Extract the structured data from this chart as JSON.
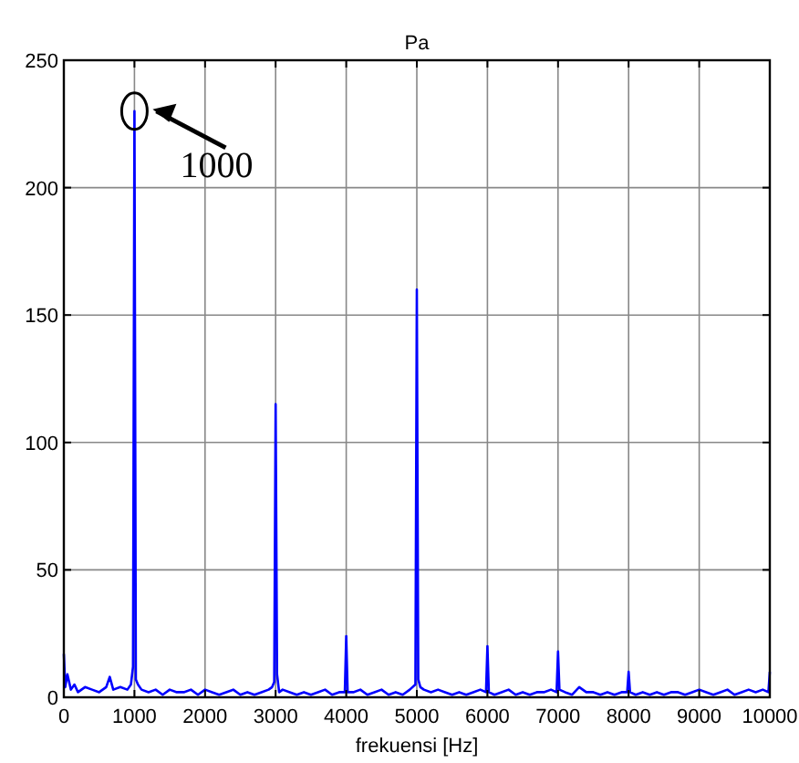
{
  "chart_data": {
    "type": "line",
    "title": "Pa",
    "xlabel": "frekuensi [Hz]",
    "x": [
      0,
      20,
      50,
      100,
      150,
      200,
      300,
      400,
      500,
      600,
      650,
      700,
      800,
      900,
      950,
      980,
      1000,
      1020,
      1050,
      1100,
      1200,
      1300,
      1400,
      1500,
      1600,
      1700,
      1800,
      1900,
      2000,
      2100,
      2200,
      2300,
      2400,
      2500,
      2600,
      2700,
      2800,
      2900,
      2950,
      2980,
      3000,
      3020,
      3050,
      3100,
      3200,
      3300,
      3400,
      3500,
      3600,
      3700,
      3800,
      3900,
      3980,
      4000,
      4020,
      4100,
      4200,
      4300,
      4400,
      4500,
      4600,
      4700,
      4800,
      4900,
      4980,
      5000,
      5020,
      5050,
      5100,
      5200,
      5300,
      5400,
      5500,
      5600,
      5700,
      5800,
      5900,
      5980,
      6000,
      6020,
      6100,
      6200,
      6300,
      6400,
      6500,
      6600,
      6700,
      6800,
      6900,
      6980,
      7000,
      7020,
      7100,
      7200,
      7300,
      7400,
      7500,
      7600,
      7700,
      7800,
      7900,
      7980,
      8000,
      8020,
      8100,
      8200,
      8300,
      8400,
      8500,
      8600,
      8700,
      8800,
      8900,
      9000,
      9100,
      9200,
      9300,
      9400,
      9500,
      9600,
      9700,
      9800,
      9900,
      9980,
      10000
    ],
    "series": [
      {
        "color": "#0000ff",
        "values": [
          17,
          4,
          9,
          3,
          5,
          2,
          4,
          3,
          2,
          4,
          8,
          3,
          4,
          3,
          5,
          12,
          230,
          7,
          5,
          3,
          2,
          3,
          1,
          3,
          2,
          2,
          3,
          1,
          3,
          2,
          1,
          2,
          3,
          1,
          2,
          1,
          2,
          3,
          4,
          6,
          115,
          9,
          2,
          3,
          2,
          1,
          2,
          1,
          2,
          3,
          1,
          2,
          2,
          24,
          2,
          2,
          3,
          1,
          2,
          3,
          1,
          2,
          1,
          3,
          5,
          160,
          7,
          4,
          3,
          2,
          3,
          2,
          1,
          2,
          1,
          2,
          3,
          2,
          20,
          2,
          1,
          2,
          3,
          1,
          2,
          1,
          2,
          2,
          3,
          2,
          18,
          3,
          2,
          1,
          4,
          2,
          2,
          1,
          2,
          1,
          2,
          2,
          10,
          2,
          1,
          2,
          1,
          2,
          1,
          2,
          2,
          1,
          2,
          3,
          2,
          1,
          2,
          3,
          1,
          2,
          3,
          2,
          3,
          2,
          10
        ]
      }
    ],
    "xlim": [
      0,
      10000
    ],
    "xticks": [
      0,
      1000,
      2000,
      3000,
      4000,
      5000,
      6000,
      7000,
      8000,
      9000,
      10000
    ],
    "ylim": [
      0,
      250
    ],
    "yticks": [
      0,
      50,
      100,
      150,
      200,
      250
    ],
    "grid": true,
    "line_style": "solid",
    "annotations": [
      {
        "text": "1000",
        "x": 1000,
        "y": 230
      }
    ]
  }
}
